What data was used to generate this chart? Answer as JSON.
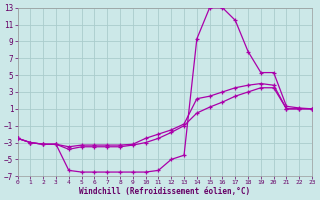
{
  "bg_color": "#cce8e8",
  "grid_color": "#aacccc",
  "line_color": "#aa00aa",
  "marker_color": "#aa00aa",
  "xlabel": "Windchill (Refroidissement éolien,°C)",
  "xlabel_color": "#660066",
  "tick_color": "#660066",
  "xlim": [
    0,
    23
  ],
  "ylim": [
    -7,
    13
  ],
  "xticks": [
    0,
    1,
    2,
    3,
    4,
    5,
    6,
    7,
    8,
    9,
    10,
    11,
    12,
    13,
    14,
    15,
    16,
    17,
    18,
    19,
    20,
    21,
    22,
    23
  ],
  "yticks": [
    -7,
    -5,
    -3,
    -1,
    1,
    3,
    5,
    7,
    9,
    11,
    13
  ],
  "curve1_x": [
    0,
    1,
    2,
    3,
    4,
    5,
    6,
    7,
    8,
    9,
    10,
    11,
    12,
    13,
    14,
    15,
    16,
    17,
    18,
    19,
    20,
    21,
    22,
    23
  ],
  "curve1_y": [
    -2.5,
    -3.0,
    -3.2,
    -3.2,
    -6.3,
    -6.5,
    -6.5,
    -6.5,
    -6.5,
    -6.5,
    -6.5,
    -6.3,
    -5.0,
    -4.5,
    9.3,
    13.0,
    13.0,
    11.5,
    7.8,
    5.3,
    5.3,
    1.3,
    1.1,
    1.0
  ],
  "curve2_x": [
    0,
    1,
    2,
    3,
    4,
    5,
    6,
    7,
    8,
    9,
    10,
    11,
    12,
    13,
    14,
    15,
    16,
    17,
    18,
    19,
    20,
    21,
    22,
    23
  ],
  "curve2_y": [
    -2.5,
    -3.0,
    -3.2,
    -3.2,
    -3.5,
    -3.3,
    -3.3,
    -3.3,
    -3.3,
    -3.2,
    -2.5,
    -2.0,
    -1.5,
    -0.8,
    2.2,
    2.5,
    3.0,
    3.5,
    3.8,
    4.0,
    3.8,
    1.0,
    1.0,
    1.0
  ],
  "curve3_x": [
    0,
    1,
    2,
    3,
    4,
    5,
    6,
    7,
    8,
    9,
    10,
    11,
    12,
    13,
    14,
    15,
    16,
    17,
    18,
    19,
    20,
    21,
    22,
    23
  ],
  "curve3_y": [
    -2.5,
    -3.0,
    -3.2,
    -3.2,
    -3.8,
    -3.5,
    -3.5,
    -3.5,
    -3.5,
    -3.3,
    -3.0,
    -2.5,
    -1.8,
    -1.0,
    0.5,
    1.2,
    1.8,
    2.5,
    3.0,
    3.5,
    3.5,
    1.0,
    1.0,
    1.0
  ]
}
